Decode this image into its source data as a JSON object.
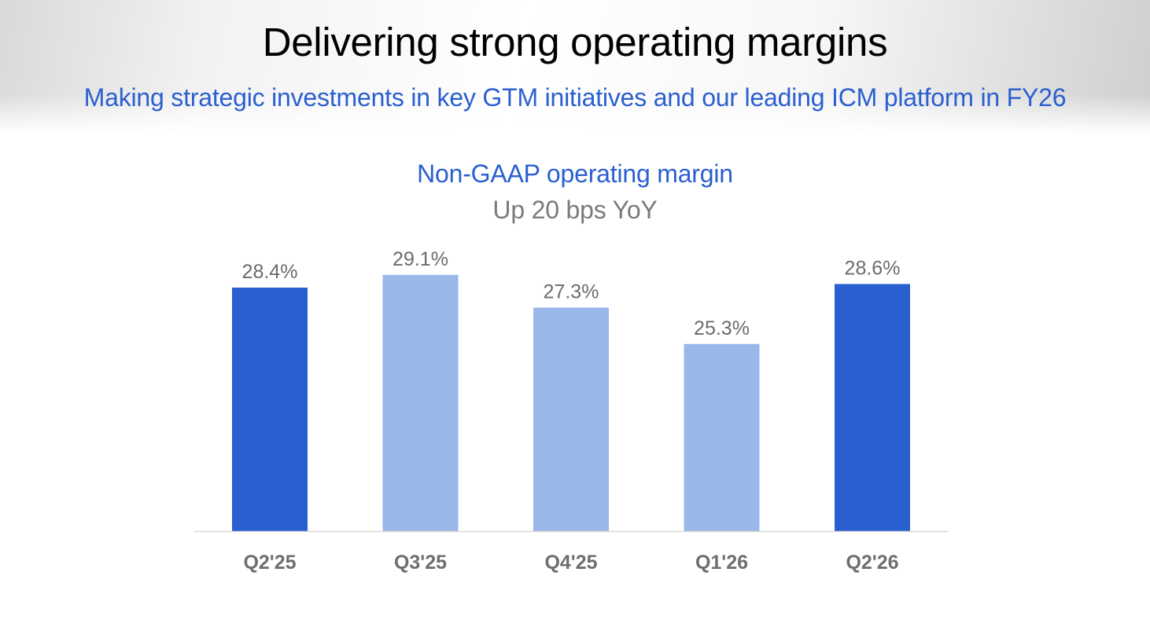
{
  "header": {
    "title": "Delivering strong operating margins",
    "subtitle": "Making strategic investments in key GTM initiatives and our leading ICM platform in FY26"
  },
  "colors": {
    "accent": "#2a5fd0",
    "highlight_bar": "#2a5fd0",
    "muted_bar": "#99b7e8",
    "baseline": "#d9d9d9"
  },
  "chart_data": {
    "type": "bar",
    "title": "Non-GAAP operating margin",
    "subtitle": "Up 20 bps YoY",
    "categories": [
      "Q2'25",
      "Q3'25",
      "Q4'25",
      "Q1'26",
      "Q2'26"
    ],
    "values": [
      28.4,
      29.1,
      27.3,
      25.3,
      28.6
    ],
    "data_labels": [
      "28.4%",
      "29.1%",
      "27.3%",
      "25.3%",
      "28.6%"
    ],
    "highlighted": [
      true,
      false,
      false,
      false,
      true
    ],
    "ylim": [
      15,
      29.7
    ],
    "grid": false,
    "legend": "none",
    "xlabel": "",
    "ylabel": ""
  }
}
